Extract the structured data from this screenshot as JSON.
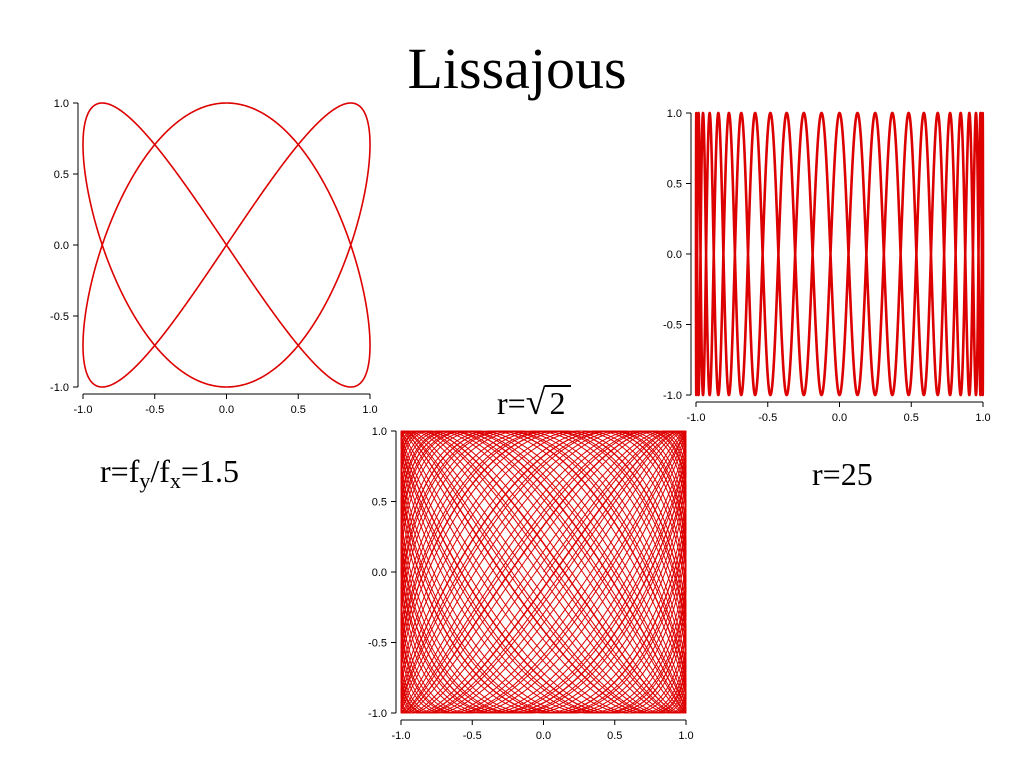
{
  "title": "Lissajous",
  "colors": {
    "trace": "#dd0000",
    "axis": "#000000"
  },
  "captions": {
    "left": {
      "r": "r=f",
      "sub_y": "y",
      "slash_f": "/f",
      "sub_x": "x",
      "eq": "=1.5"
    },
    "middle": {
      "r": "r=",
      "sqrt_sign": "√",
      "radicand": "2"
    },
    "right": "r=25"
  },
  "chart_data": [
    {
      "type": "line",
      "name": "ratio 1.5",
      "curve": {
        "x": "sin(2 t)",
        "y": "cos(3 t)",
        "fy_over_fx": 1.5,
        "t_range": [
          0,
          6.2832
        ]
      },
      "xlim": [
        -1.0,
        1.0
      ],
      "ylim": [
        -1.0,
        1.0
      ],
      "xticks": [
        "-1.0",
        "-0.5",
        "0.0",
        "0.5",
        "1.0"
      ],
      "yticks": [
        "1.0",
        "0.5",
        "0.0",
        "-0.5",
        "-1.0"
      ],
      "grid": false
    },
    {
      "type": "line",
      "name": "ratio 25",
      "curve": {
        "x": "sin(t)",
        "y": "cos(25 t)",
        "fy_over_fx": 25,
        "t_range": [
          0,
          12.5664
        ]
      },
      "xlim": [
        -1.0,
        1.0
      ],
      "ylim": [
        -1.0,
        1.0
      ],
      "xticks": [
        "-1.0",
        "-0.5",
        "0.0",
        "0.5",
        "1.0"
      ],
      "yticks": [
        "1.0",
        "0.5",
        "0.0",
        "-0.5",
        "-1.0"
      ],
      "grid": false
    },
    {
      "type": "line",
      "name": "ratio sqrt 2",
      "curve": {
        "x": "sin(t)",
        "y": "sin(1.41421 t)",
        "fy_over_fx": 1.41421,
        "t_range": [
          0,
          300
        ]
      },
      "xlim": [
        -1.0,
        1.0
      ],
      "ylim": [
        -1.0,
        1.0
      ],
      "xticks": [
        "-1.0",
        "-0.5",
        "0.0",
        "0.5",
        "1.0"
      ],
      "yticks": [
        "1.0",
        "0.5",
        "0.0",
        "-0.5",
        "-1.0"
      ],
      "grid": false
    }
  ]
}
